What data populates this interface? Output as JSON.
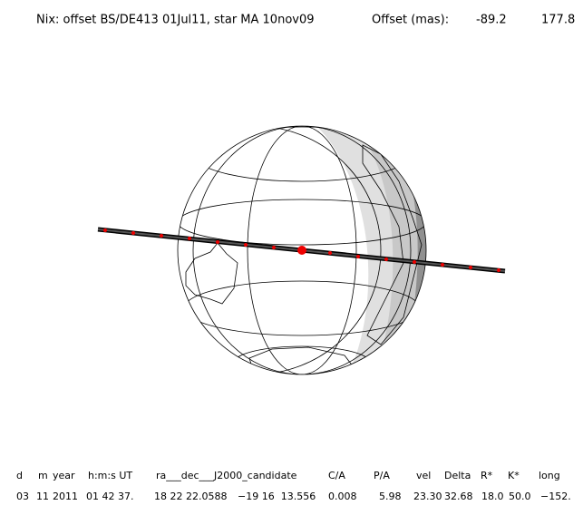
{
  "header": {
    "title": "Nix: offset BS/DE413 01Jul11, star MA 10nov09",
    "offset_label": "Offset (mas):",
    "offset_values": [
      "-89.2",
      "177.8"
    ]
  },
  "table": {
    "header": [
      "d",
      "m",
      "year",
      "h:m:s UT",
      "ra___dec___J2000_candidate",
      "C/A",
      "P/A",
      "vel",
      "Delta",
      "R*",
      "K*",
      "long"
    ],
    "rows": [
      [
        "03",
        "11",
        "2011",
        "01 42 37.",
        "18 22 22.0588",
        "−19 16  13.556",
        "0.008",
        "5.98",
        "23.30",
        "32.68",
        "18.0",
        "50.0",
        "−152."
      ]
    ]
  }
}
